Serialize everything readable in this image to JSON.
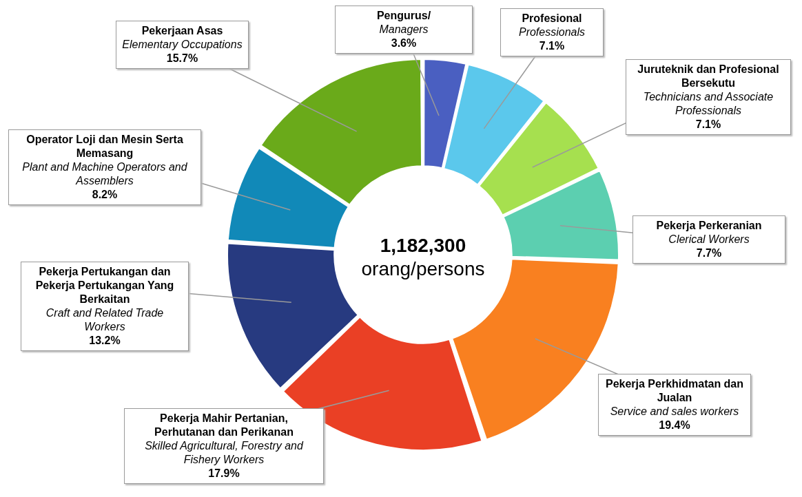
{
  "chart_data": {
    "type": "donut",
    "title": "1,182,300",
    "subtitle": "orang/persons",
    "categories": [
      "Pengurus/\nManagers",
      "Profesional\nProfessionals",
      "Juruteknik dan Profesional Bersekutu\nTechnicians and Associate Professionals",
      "Pekerja Perkeranian\nClerical Workers",
      "Pekerja Perkhidmatan dan Jualan\nService and sales workers",
      "Pekerja Mahir Pertanian, Perhutanan dan Perikanan\nSkilled Agricultural, Forestry and Fishery Workers",
      "Pekerja Pertukangan dan Pekerja Pertukangan Yang Berkaitan\nCraft and Related Trade Workers",
      "Operator Loji dan Mesin Serta Memasang\nPlant and Machine Operators and Assemblers",
      "Pekerjaan Asas\nElementary Occupations"
    ],
    "values": [
      3.6,
      7.1,
      7.1,
      7.7,
      19.4,
      17.9,
      13.2,
      8.2,
      15.7
    ],
    "value_labels": [
      "3.6%",
      "7.1%",
      "7.1%",
      "7.7%",
      "19.4%",
      "17.9%",
      "13.2%",
      "8.2%",
      "15.7%"
    ],
    "colors": [
      "#4a5fc1",
      "#5bc8ec",
      "#a6e04f",
      "#5ccfb0",
      "#f98020",
      "#ea4025",
      "#273a80",
      "#1189b8",
      "#6aaa1a"
    ],
    "legend": false
  }
}
